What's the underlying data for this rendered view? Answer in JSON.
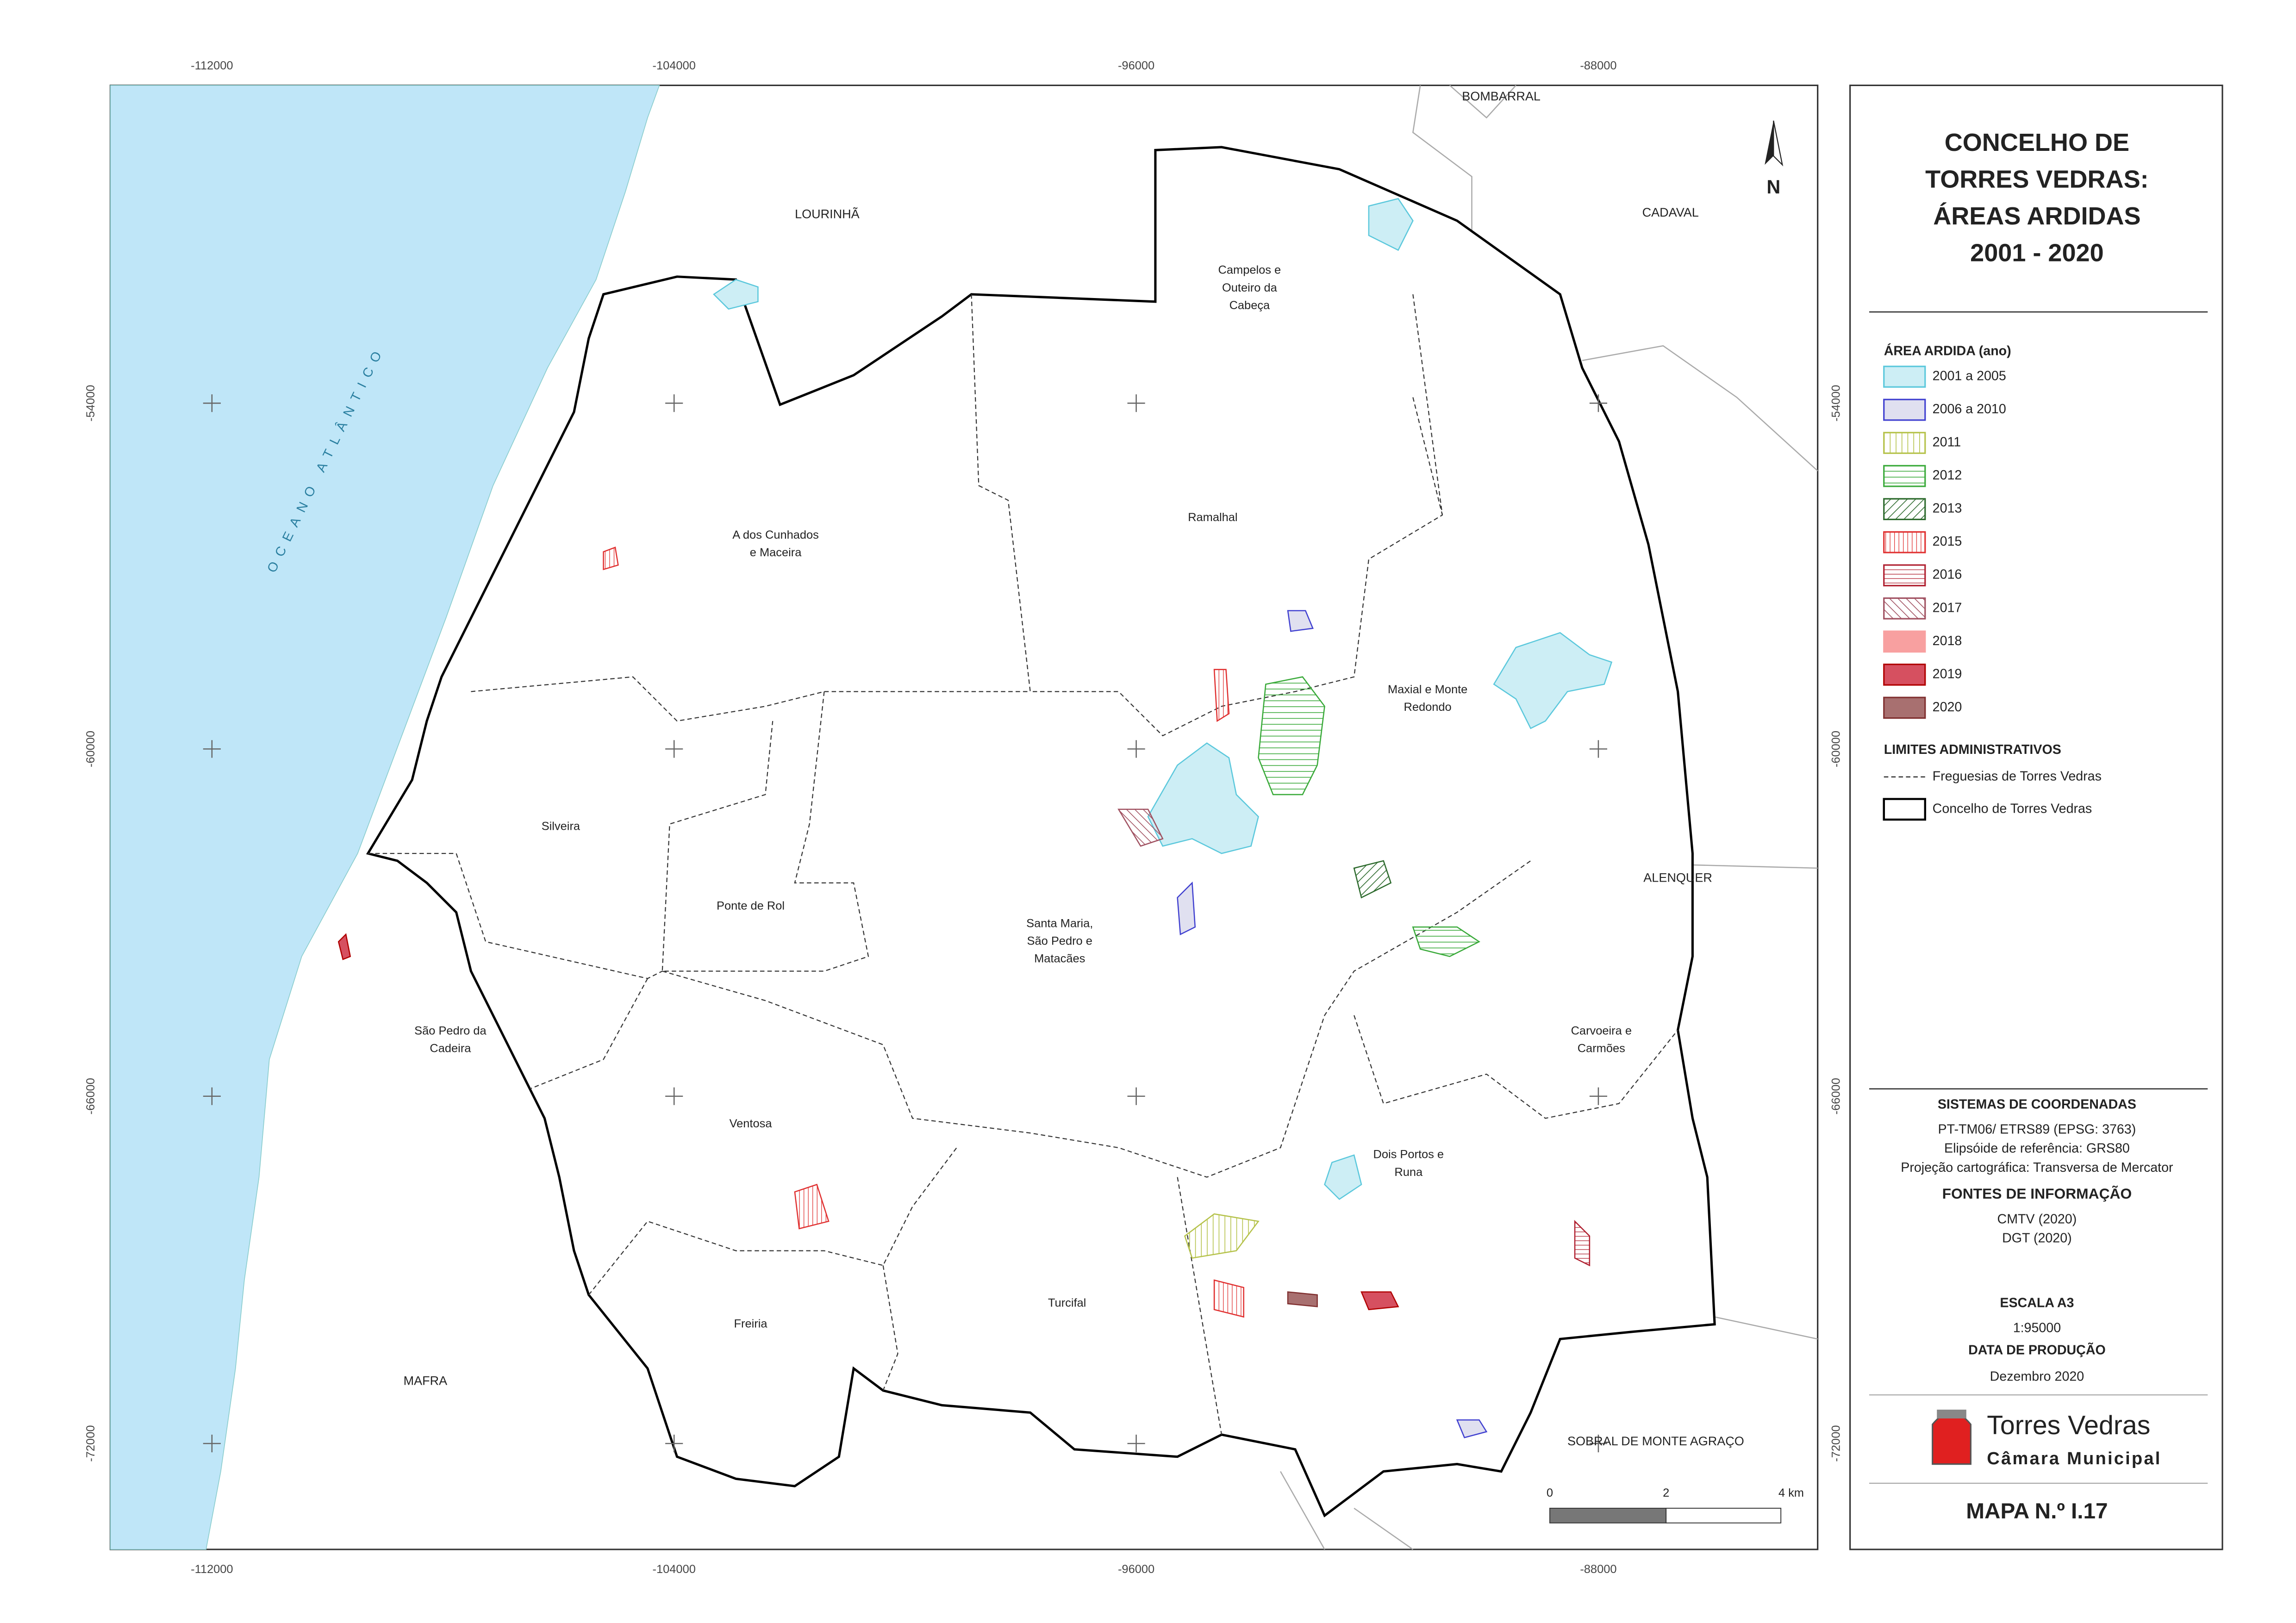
{
  "grid": {
    "x_labels": [
      "-112000",
      "-104000",
      "-96000",
      "-88000"
    ],
    "y_labels": [
      "-54000",
      "-60000",
      "-66000",
      "-72000"
    ]
  },
  "ocean": "OCEANO ATLÂNTICO",
  "north": "N",
  "neighbors": [
    "LOURINHÃ",
    "BOMBARRAL",
    "CADAVAL",
    "ALENQUER",
    "MAFRA",
    "SOBRAL DE MONTE AGRAÇO"
  ],
  "parishes": [
    [
      "Campelos e",
      "Outeiro da",
      "Cabeça"
    ],
    [
      "Ramalhal"
    ],
    [
      "A dos Cunhados",
      "e Maceira"
    ],
    [
      "Maxial e Monte",
      "Redondo"
    ],
    [
      "Silveira"
    ],
    [
      "Ponte de Rol"
    ],
    [
      "Santa Maria,",
      "São Pedro e",
      "Matacães"
    ],
    [
      "São Pedro da",
      "Cadeira"
    ],
    [
      "Carvoeira e",
      "Carmões"
    ],
    [
      "Ventosa"
    ],
    [
      "Dois Portos e",
      "Runa"
    ],
    [
      "Freiria"
    ],
    [
      "Turcifal"
    ]
  ],
  "scale_bar": [
    "0",
    "2",
    "4 km"
  ],
  "title": [
    "CONCELHO DE",
    "TORRES VEDRAS:",
    "ÁREAS ARDIDAS",
    "2001 - 2020"
  ],
  "legend": {
    "burned_heading": "ÁREA ARDIDA (ano)",
    "burned_items": [
      "2001 a 2005",
      "2006 a 2010",
      "2011",
      "2012",
      "2013",
      "2015",
      "2016",
      "2017",
      "2018",
      "2019",
      "2020"
    ],
    "admin_heading": "LIMITES ADMINISTRATIVOS",
    "admin_items": [
      "Freguesias de Torres Vedras",
      "Concelho de Torres Vedras"
    ]
  },
  "info": {
    "coord_heading": "SISTEMAS DE COORDENADAS",
    "coord_lines": [
      "PT-TM06/ ETRS89 (EPSG: 3763)",
      "Elipsóide de referência: GRS80",
      "Projeção cartográfica: Transversa de Mercator"
    ],
    "sources_heading": "FONTES DE INFORMAÇÃO",
    "sources": [
      "CMTV (2020)",
      "DGT (2020)"
    ],
    "scale_heading": "ESCALA A3",
    "scale": "1:95000",
    "date_heading": "DATA DE PRODUÇÃO",
    "date": "Dezembro 2020"
  },
  "logo": {
    "name": "Torres Vedras",
    "subtitle": "Câmara Municipal"
  },
  "map_number": "MAPA N.º I.17"
}
